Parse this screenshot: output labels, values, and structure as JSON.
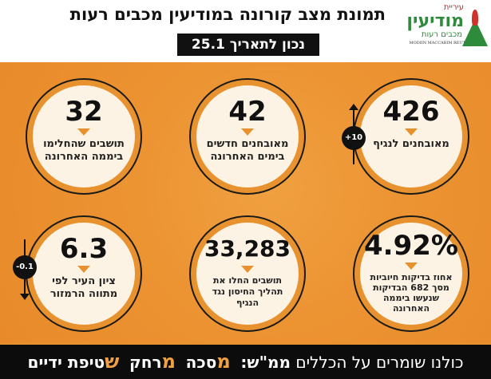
{
  "header": {
    "title": "תמונת מצב קורונה במודיעין מכבים רעות",
    "date": "נכון לתאריך 25.1",
    "logo": {
      "line1": "עיריית",
      "line2": "מודיעין",
      "line3": "מכבים רעות",
      "line4": "MODIIN MACCABIM REUT"
    }
  },
  "stats": [
    {
      "value": "426",
      "label": "מאובחנים לנגיף",
      "change": "+10",
      "direction": "up"
    },
    {
      "value": "42",
      "label": "מאובחנים חדשים בימים האחרונה"
    },
    {
      "value": "32",
      "label": "תושבים שהחלימו ביממה האחרונה"
    },
    {
      "value": "4.92%",
      "label": "אחוז בדיקות חיוביות מסך 682 הבדיקות שנעשו ביממה האחרונה"
    },
    {
      "value": "33,283",
      "label": "תושבים החלו את תהליך החיסון נגד הנגיף"
    },
    {
      "value": "6.3",
      "label": "ציון העיר לפי מתווה הרמזור",
      "change": "-0.1",
      "direction": "down"
    }
  ],
  "footer": {
    "intro": "כולנו שומרים על הכללים",
    "mmsh": "ממ\"ש:",
    "m1": "מ",
    "w1": "סכה",
    "m2": "מ",
    "w2": "רחק",
    "s3": "ש",
    "w3": "טיפת ידיים"
  },
  "colors": {
    "accent": "#e8922f",
    "dark": "#111111",
    "cream": "#fdf3e4"
  }
}
